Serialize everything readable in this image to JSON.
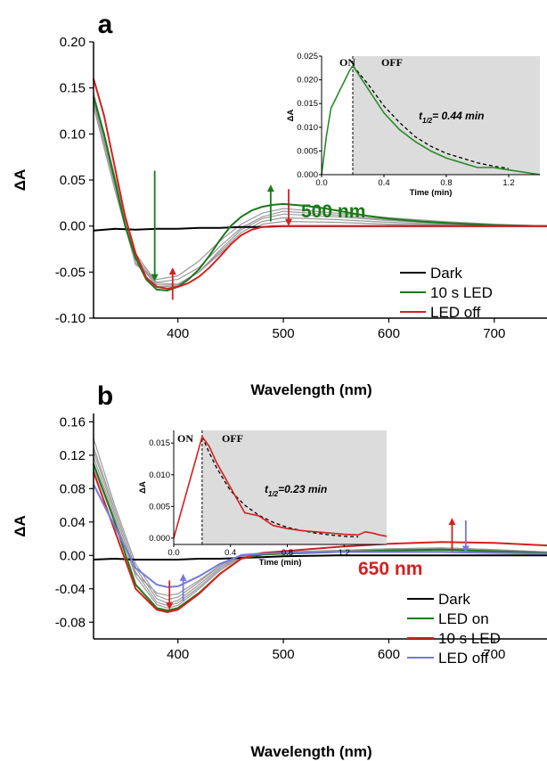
{
  "chart_data": [
    {
      "id": "a",
      "type": "line",
      "panel_label": "a",
      "xlabel": "Wavelength (nm)",
      "ylabel": "ΔA",
      "xlim": [
        320,
        750
      ],
      "ylim": [
        -0.1,
        0.2
      ],
      "xticks": [
        "400",
        "500",
        "600",
        "700"
      ],
      "xtick_values": [
        400,
        500,
        600,
        700
      ],
      "yticks": [
        "-0.10",
        "-0.05",
        "0.00",
        "0.05",
        "0.10",
        "0.15",
        "0.20"
      ],
      "ytick_values": [
        -0.1,
        -0.05,
        0.0,
        0.05,
        0.1,
        0.15,
        0.2
      ],
      "annotation": "500 nm",
      "annotation_color": "#1a7a1a",
      "legend_position": "bottom-right",
      "series": [
        {
          "name": "Dark",
          "color": "#000000",
          "x": [
            320,
            340,
            360,
            380,
            400,
            420,
            440,
            460,
            480,
            500,
            550,
            600,
            650,
            700,
            750
          ],
          "y": [
            -0.005,
            -0.003,
            -0.004,
            -0.003,
            -0.003,
            -0.002,
            -0.002,
            -0.001,
            -0.001,
            0.0,
            0.0,
            0.0,
            0.0,
            0.0,
            0.0
          ]
        },
        {
          "name": "10 s LED",
          "color": "#1a7a1a",
          "x": [
            320,
            330,
            340,
            350,
            360,
            370,
            380,
            390,
            400,
            410,
            420,
            430,
            440,
            450,
            460,
            470,
            480,
            490,
            500,
            510,
            520,
            540,
            560,
            580,
            600,
            630,
            660,
            700,
            750
          ],
          "y": [
            0.14,
            0.1,
            0.05,
            0.0,
            -0.035,
            -0.058,
            -0.069,
            -0.07,
            -0.066,
            -0.058,
            -0.047,
            -0.032,
            -0.015,
            0.0,
            0.01,
            0.017,
            0.021,
            0.023,
            0.024,
            0.023,
            0.022,
            0.019,
            0.015,
            0.011,
            0.008,
            0.005,
            0.003,
            0.001,
            0.0
          ]
        },
        {
          "name": "LED off",
          "color": "#d42020",
          "x": [
            320,
            330,
            340,
            350,
            360,
            370,
            380,
            390,
            400,
            410,
            420,
            430,
            440,
            450,
            460,
            470,
            480,
            490,
            500,
            520,
            560,
            600,
            650,
            700,
            750
          ],
          "y": [
            0.16,
            0.12,
            0.065,
            0.01,
            -0.03,
            -0.056,
            -0.066,
            -0.068,
            -0.066,
            -0.062,
            -0.055,
            -0.045,
            -0.033,
            -0.02,
            -0.01,
            -0.004,
            -0.001,
            0.0,
            0.0,
            0.0,
            0.0,
            0.0,
            0.0,
            0.0,
            0.0
          ]
        }
      ],
      "gray_series_color": "#9a9a9a",
      "gray_series": [
        {
          "x": [
            320,
            340,
            360,
            380,
            400,
            420,
            440,
            460,
            480,
            500,
            550,
            600,
            650,
            700,
            750
          ],
          "y": [
            0.145,
            0.055,
            -0.03,
            -0.062,
            -0.063,
            -0.05,
            -0.03,
            -0.01,
            0.002,
            0.005,
            0.004,
            0.002,
            0.001,
            0.0,
            0.0
          ]
        },
        {
          "x": [
            320,
            340,
            360,
            380,
            400,
            420,
            440,
            460,
            480,
            500,
            550,
            600,
            650,
            700,
            750
          ],
          "y": [
            0.142,
            0.052,
            -0.033,
            -0.064,
            -0.064,
            -0.05,
            -0.028,
            -0.007,
            0.005,
            0.009,
            0.007,
            0.004,
            0.002,
            0.001,
            0.0
          ]
        },
        {
          "x": [
            320,
            340,
            360,
            380,
            400,
            420,
            440,
            460,
            480,
            500,
            550,
            600,
            650,
            700,
            750
          ],
          "y": [
            0.138,
            0.048,
            -0.036,
            -0.066,
            -0.065,
            -0.05,
            -0.026,
            -0.004,
            0.008,
            0.013,
            0.01,
            0.006,
            0.003,
            0.001,
            0.0
          ]
        },
        {
          "x": [
            320,
            340,
            360,
            380,
            400,
            420,
            440,
            460,
            480,
            500,
            550,
            600,
            650,
            700,
            750
          ],
          "y": [
            0.135,
            0.045,
            -0.04,
            -0.061,
            -0.058,
            -0.045,
            -0.022,
            -0.002,
            0.01,
            0.016,
            0.012,
            0.007,
            0.004,
            0.001,
            0.0
          ]
        },
        {
          "x": [
            320,
            340,
            360,
            380,
            400,
            420,
            440,
            460,
            480,
            500,
            550,
            600,
            650,
            700,
            750
          ],
          "y": [
            0.13,
            0.04,
            -0.042,
            -0.058,
            -0.054,
            -0.038,
            -0.016,
            0.002,
            0.014,
            0.019,
            0.014,
            0.009,
            0.005,
            0.002,
            0.0
          ]
        }
      ],
      "arrows": [
        {
          "x": 378,
          "from": 0.06,
          "to": -0.06,
          "color": "#1a7a1a"
        },
        {
          "x": 395,
          "from": -0.08,
          "to": -0.045,
          "color": "#d42020"
        },
        {
          "x": 488,
          "from": 0.005,
          "to": 0.045,
          "color": "#1a7a1a"
        },
        {
          "x": 505,
          "from": 0.04,
          "to": 0.0,
          "color": "#d42020"
        }
      ],
      "inset": {
        "xlabel": "Time (min)",
        "ylabel": "ΔA",
        "xlim": [
          0.0,
          1.4
        ],
        "ylim": [
          0.0,
          0.025
        ],
        "xticks": [
          "0.0",
          "0.4",
          "0.8",
          "1.2"
        ],
        "xtick_values": [
          0.0,
          0.4,
          0.8,
          1.2
        ],
        "yticks": [
          "0.000",
          "0.005",
          "0.010",
          "0.015",
          "0.020",
          "0.025"
        ],
        "ytick_values": [
          0.0,
          0.005,
          0.01,
          0.015,
          0.02,
          0.025
        ],
        "on_label": "ON",
        "off_label": "OFF",
        "switch_time": 0.2,
        "t_half_label": "t",
        "t_half_sub": "1/2",
        "t_half_value": "= 0.44 min",
        "data_color": "#2a8a2a",
        "data": {
          "x": [
            0.0,
            0.03,
            0.06,
            0.09,
            0.12,
            0.15,
            0.18,
            0.2,
            0.24,
            0.3,
            0.4,
            0.5,
            0.6,
            0.7,
            0.8,
            0.9,
            1.0,
            1.1,
            1.2,
            1.3,
            1.4
          ],
          "y": [
            0.0,
            0.008,
            0.014,
            0.016,
            0.018,
            0.02,
            0.022,
            0.023,
            0.021,
            0.018,
            0.013,
            0.0095,
            0.007,
            0.005,
            0.0035,
            0.0025,
            0.0015,
            0.0015,
            0.001,
            0.0005,
            0.0
          ]
        },
        "fit": {
          "x": [
            0.2,
            0.3,
            0.4,
            0.5,
            0.6,
            0.7,
            0.8,
            0.9,
            1.0,
            1.1,
            1.2
          ],
          "y": [
            0.023,
            0.019,
            0.0145,
            0.011,
            0.008,
            0.006,
            0.0045,
            0.0035,
            0.0025,
            0.0018,
            0.0013
          ]
        }
      }
    },
    {
      "id": "b",
      "type": "line",
      "panel_label": "b",
      "xlabel": "Wavelength (nm)",
      "ylabel": "ΔA",
      "xlim": [
        320,
        750
      ],
      "ylim": [
        -0.1,
        0.17
      ],
      "xticks": [
        "400",
        "500",
        "600",
        "700"
      ],
      "xtick_values": [
        400,
        500,
        600,
        700
      ],
      "yticks": [
        "-0.08",
        "-0.04",
        "0.00",
        "0.04",
        "0.08",
        "0.12",
        "0.16"
      ],
      "ytick_values": [
        -0.08,
        -0.04,
        0.0,
        0.04,
        0.08,
        0.12,
        0.16
      ],
      "annotation": "650 nm",
      "annotation_color": "#d42020",
      "legend_position": "bottom-right",
      "series": [
        {
          "name": "Dark",
          "color": "#000000",
          "x": [
            320,
            340,
            360,
            380,
            400,
            420,
            440,
            460,
            480,
            500,
            550,
            600,
            650,
            700,
            750
          ],
          "y": [
            -0.005,
            -0.004,
            -0.005,
            -0.005,
            -0.005,
            -0.004,
            -0.004,
            -0.003,
            -0.002,
            -0.001,
            0.0,
            0.0,
            0.0,
            0.0,
            0.0
          ]
        },
        {
          "name": "LED on",
          "color": "#1a7a1a",
          "x": [
            320,
            340,
            360,
            380,
            390,
            400,
            420,
            440,
            460,
            480,
            500,
            550,
            600,
            650,
            700,
            750
          ],
          "y": [
            0.11,
            0.04,
            -0.035,
            -0.063,
            -0.066,
            -0.063,
            -0.045,
            -0.022,
            -0.004,
            0.001,
            0.002,
            0.004,
            0.006,
            0.007,
            0.005,
            0.003
          ]
        },
        {
          "name": "10 s LED",
          "color": "#d42020",
          "x": [
            320,
            340,
            360,
            380,
            390,
            400,
            420,
            440,
            460,
            480,
            500,
            550,
            600,
            650,
            700,
            750
          ],
          "y": [
            0.1,
            0.03,
            -0.04,
            -0.065,
            -0.068,
            -0.065,
            -0.046,
            -0.022,
            -0.004,
            0.003,
            0.005,
            0.01,
            0.014,
            0.016,
            0.015,
            0.012
          ]
        },
        {
          "name": "LED off",
          "color": "#7878e0",
          "x": [
            320,
            340,
            360,
            380,
            390,
            400,
            420,
            440,
            460,
            480,
            500,
            550,
            600,
            650,
            700,
            750
          ],
          "y": [
            0.085,
            0.035,
            -0.015,
            -0.035,
            -0.038,
            -0.037,
            -0.025,
            -0.01,
            0.0,
            0.002,
            0.003,
            0.004,
            0.004,
            0.004,
            0.003,
            0.002
          ]
        }
      ],
      "gray_series_color": "#9a9a9a",
      "gray_series": [
        {
          "x": [
            320,
            340,
            360,
            380,
            390,
            400,
            420,
            440,
            460,
            480,
            500,
            550,
            600,
            650,
            700,
            750
          ],
          "y": [
            0.14,
            0.06,
            -0.01,
            -0.048,
            -0.053,
            -0.05,
            -0.032,
            -0.012,
            0.001,
            0.003,
            0.004,
            0.006,
            0.008,
            0.009,
            0.007,
            0.004
          ]
        },
        {
          "x": [
            320,
            340,
            360,
            380,
            390,
            400,
            420,
            440,
            460,
            480,
            500,
            550,
            600,
            650,
            700,
            750
          ],
          "y": [
            0.13,
            0.055,
            -0.015,
            -0.052,
            -0.057,
            -0.054,
            -0.035,
            -0.014,
            0.0,
            0.003,
            0.004,
            0.006,
            0.008,
            0.009,
            0.007,
            0.004
          ]
        },
        {
          "x": [
            320,
            340,
            360,
            380,
            390,
            400,
            420,
            440,
            460,
            480,
            500,
            550,
            600,
            650,
            700,
            750
          ],
          "y": [
            0.125,
            0.05,
            -0.02,
            -0.056,
            -0.06,
            -0.057,
            -0.038,
            -0.016,
            -0.001,
            0.002,
            0.003,
            0.005,
            0.007,
            0.008,
            0.006,
            0.003
          ]
        },
        {
          "x": [
            320,
            340,
            360,
            380,
            390,
            400,
            420,
            440,
            460,
            480,
            500,
            550,
            600,
            650,
            700,
            750
          ],
          "y": [
            0.118,
            0.045,
            -0.025,
            -0.059,
            -0.063,
            -0.06,
            -0.04,
            -0.018,
            -0.002,
            0.002,
            0.003,
            0.005,
            0.006,
            0.007,
            0.005,
            0.003
          ]
        },
        {
          "x": [
            320,
            340,
            360,
            380,
            390,
            400,
            420,
            440,
            460,
            480,
            500,
            550,
            600,
            650,
            700,
            750
          ],
          "y": [
            0.105,
            0.04,
            -0.022,
            -0.045,
            -0.048,
            -0.046,
            -0.03,
            -0.012,
            0.0,
            0.002,
            0.003,
            0.004,
            0.005,
            0.005,
            0.004,
            0.002
          ]
        }
      ],
      "arrows": [
        {
          "x": 392,
          "from": -0.03,
          "to": -0.065,
          "color": "#d42020"
        },
        {
          "x": 405,
          "from": -0.055,
          "to": -0.022,
          "color": "#7878e0"
        },
        {
          "x": 660,
          "from": 0.005,
          "to": 0.045,
          "color": "#d42020"
        },
        {
          "x": 673,
          "from": 0.042,
          "to": 0.003,
          "color": "#7878e0"
        }
      ],
      "inset": {
        "xlabel": "Time (min)",
        "ylabel": "ΔA",
        "xlim": [
          0.0,
          1.5
        ],
        "ylim": [
          -0.001,
          0.017
        ],
        "xticks": [
          "0.0",
          "0.4",
          "0.8",
          "1.2"
        ],
        "xtick_values": [
          0.0,
          0.4,
          0.8,
          1.2
        ],
        "yticks": [
          "0.000",
          "0.005",
          "0.010",
          "0.015"
        ],
        "ytick_values": [
          0.0,
          0.005,
          0.01,
          0.015
        ],
        "on_label": "ON",
        "off_label": "OFF",
        "switch_time": 0.2,
        "t_half_label": "t",
        "t_half_sub": "1/2",
        "t_half_value": "=0.23 min",
        "data_color": "#d42020",
        "data": {
          "x": [
            0.0,
            0.05,
            0.1,
            0.15,
            0.2,
            0.25,
            0.3,
            0.35,
            0.4,
            0.45,
            0.5,
            0.6,
            0.7,
            0.8,
            0.9,
            1.0,
            1.1,
            1.2,
            1.3,
            1.35,
            1.4,
            1.45,
            1.5
          ],
          "y": [
            0.0,
            0.004,
            0.008,
            0.012,
            0.016,
            0.0145,
            0.012,
            0.01,
            0.008,
            0.006,
            0.004,
            0.0035,
            0.002,
            0.0015,
            0.0012,
            0.001,
            0.0008,
            0.0006,
            0.0005,
            0.001,
            0.0008,
            0.0005,
            0.0003
          ]
        },
        "fit": {
          "x": [
            0.2,
            0.25,
            0.3,
            0.35,
            0.4,
            0.5,
            0.6,
            0.7,
            0.8,
            0.9,
            1.0,
            1.1,
            1.2,
            1.3
          ],
          "y": [
            0.016,
            0.0135,
            0.0112,
            0.0093,
            0.0075,
            0.0052,
            0.0036,
            0.0025,
            0.0017,
            0.0012,
            0.0008,
            0.0005,
            0.0003,
            0.0002
          ]
        }
      }
    }
  ]
}
